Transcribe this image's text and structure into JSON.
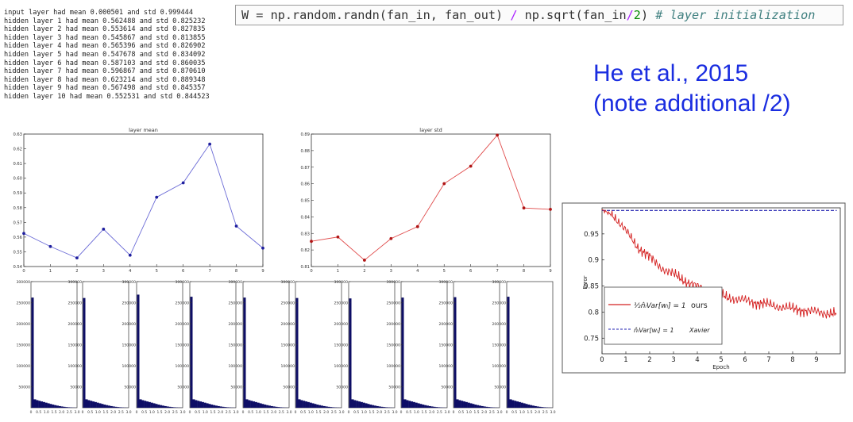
{
  "log_lines": [
    "input layer had mean 0.000501 and std 0.999444",
    "hidden layer 1 had mean 0.562488 and std 0.825232",
    "hidden layer 2 had mean 0.553614 and std 0.827835",
    "hidden layer 3 had mean 0.545867 and std 0.813855",
    "hidden layer 4 had mean 0.565396 and std 0.826902",
    "hidden layer 5 had mean 0.547678 and std 0.834092",
    "hidden layer 6 had mean 0.587103 and std 0.860035",
    "hidden layer 7 had mean 0.596867 and std 0.870610",
    "hidden layer 8 had mean 0.623214 and std 0.889348",
    "hidden layer 9 had mean 0.567498 and std 0.845357",
    "hidden layer 10 had mean 0.552531 and std 0.844523"
  ],
  "code": {
    "p1": "W = np.random.randn(fan_in, fan_out) ",
    "op1": "/",
    "p2": " np.sqrt(fan_in",
    "op2": "/",
    "num": "2",
    "p3": ") ",
    "comment": "# layer initialization"
  },
  "reference": {
    "line1": "He et al., 2015",
    "line2": "(note additional /2)"
  },
  "colors": {
    "mean_line": "#6b6bd6",
    "mean_marker": "#1f1f9e",
    "std_line": "#e04a4a",
    "std_marker": "#b01515",
    "hist_fill": "#0e0e66",
    "ours": "#d42020",
    "xavier": "#1f1fb0",
    "reference_text": "#1a2de0"
  },
  "chart_data": [
    {
      "type": "line",
      "title": "layer mean",
      "x": [
        0,
        1,
        2,
        3,
        4,
        5,
        6,
        7,
        8,
        9
      ],
      "series": [
        {
          "values": [
            0.562488,
            0.553614,
            0.545867,
            0.565396,
            0.547678,
            0.587103,
            0.596867,
            0.623214,
            0.567498,
            0.552531
          ]
        }
      ],
      "xlim": [
        0,
        9
      ],
      "ylim": [
        0.54,
        0.63
      ],
      "xticks": [
        "0",
        "1",
        "2",
        "3",
        "4",
        "5",
        "6",
        "7",
        "8",
        "9"
      ],
      "yticks": [
        "0.54",
        "0.55",
        "0.56",
        "0.57",
        "0.58",
        "0.59",
        "0.60",
        "0.61",
        "0.62",
        "0.63"
      ]
    },
    {
      "type": "line",
      "title": "layer std",
      "x": [
        0,
        1,
        2,
        3,
        4,
        5,
        6,
        7,
        8,
        9
      ],
      "series": [
        {
          "values": [
            0.825232,
            0.827835,
            0.813855,
            0.826902,
            0.834092,
            0.860035,
            0.87061,
            0.889348,
            0.845357,
            0.844523
          ]
        }
      ],
      "xlim": [
        0,
        9
      ],
      "ylim": [
        0.81,
        0.89
      ],
      "xticks": [
        "0",
        "1",
        "2",
        "3",
        "4",
        "5",
        "6",
        "7",
        "8",
        "9"
      ],
      "yticks": [
        "0.81",
        "0.82",
        "0.83",
        "0.84",
        "0.85",
        "0.86",
        "0.87",
        "0.88",
        "0.89"
      ]
    },
    {
      "type": "bar",
      "title": "",
      "panels": 10,
      "ylim": [
        0,
        300000
      ],
      "yticks": [
        "50000",
        "100000",
        "150000",
        "200000",
        "250000",
        "300000"
      ],
      "xticks": [
        "0",
        "0.5",
        "1.0",
        "1.5",
        "2.0",
        "2.5",
        "3.0"
      ],
      "xlim": [
        0,
        3
      ],
      "peak_values": [
        262000,
        261000,
        269000,
        264000,
        262000,
        261000,
        260000,
        262000,
        263000,
        264000
      ],
      "tail_values": [
        20000,
        18000,
        16500,
        15000,
        13500,
        12000,
        10500,
        9000,
        7500,
        6200,
        5000,
        3900,
        3000,
        2200,
        1600,
        1100,
        700,
        400,
        200
      ]
    },
    {
      "type": "line",
      "title": "",
      "xlabel": "Epoch",
      "ylabel": "Error",
      "xlim": [
        0,
        10
      ],
      "ylim": [
        0.72,
        1.0
      ],
      "xticks": [
        "0",
        "1",
        "2",
        "3",
        "4",
        "5",
        "6",
        "7",
        "8",
        "9"
      ],
      "yticks": [
        "0.75",
        "0.8",
        "0.85",
        "0.9",
        "0.95"
      ],
      "legend_position": "bottom-left",
      "series": [
        {
          "name": "ours",
          "legend_formula": "½n̂ₗVar[wₗ] = 1",
          "x": [
            0,
            0.5,
            1,
            1.5,
            2,
            2.5,
            3,
            3.5,
            4,
            4.5,
            5,
            5.5,
            6,
            6.5,
            7,
            7.5,
            8,
            8.5,
            9,
            9.5,
            9.85
          ],
          "values": [
            0.995,
            0.985,
            0.955,
            0.925,
            0.905,
            0.885,
            0.872,
            0.86,
            0.848,
            0.84,
            0.832,
            0.826,
            0.822,
            0.818,
            0.814,
            0.81,
            0.806,
            0.803,
            0.8,
            0.798,
            0.796
          ]
        },
        {
          "name": "Xavier",
          "legend_formula": "n̂ₗVar[wₗ] = 1",
          "x": [
            0,
            9.85
          ],
          "values": [
            0.995,
            0.995
          ]
        }
      ]
    }
  ]
}
